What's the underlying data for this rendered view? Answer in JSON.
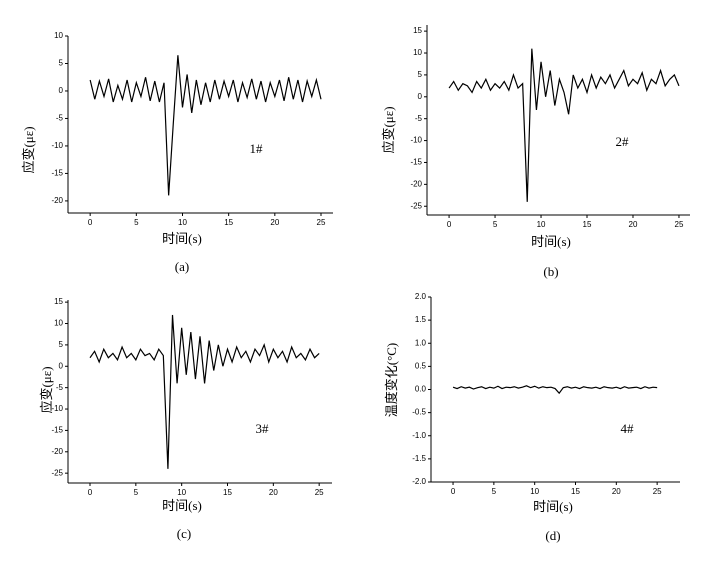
{
  "chart_data": [
    {
      "type": "line",
      "caption": "(a)",
      "annotation": "1#",
      "x_label": "时间(s)",
      "y_label": "应变(με)",
      "color": "#000000",
      "xlim": [
        -2.4,
        26.3
      ],
      "ylim": [
        -22.2,
        10
      ],
      "xticks": [
        0,
        5,
        10,
        15,
        20,
        25
      ],
      "yticks": [
        10,
        5,
        0,
        -5,
        -10,
        -15,
        -20
      ],
      "x": [
        0,
        0.5,
        1,
        1.5,
        2,
        2.5,
        3,
        3.5,
        4,
        4.5,
        5,
        5.5,
        6,
        6.5,
        7,
        7.5,
        8,
        8.5,
        9,
        9.5,
        10,
        10.5,
        11,
        11.5,
        12,
        12.5,
        13,
        13.5,
        14,
        14.5,
        15,
        15.5,
        16,
        16.5,
        17,
        17.5,
        18,
        18.5,
        19,
        19.5,
        20,
        20.5,
        21,
        21.5,
        22,
        22.5,
        23,
        23.5,
        24,
        24.5,
        25
      ],
      "values": [
        2,
        -1.5,
        1.8,
        -1,
        2.2,
        -2,
        1,
        -1.5,
        2,
        -2,
        1.5,
        -1,
        2.5,
        -1.8,
        1.8,
        -2,
        1.5,
        -19,
        -6,
        6.5,
        -3,
        3,
        -4,
        2,
        -2.5,
        1.5,
        -2,
        2,
        -1.5,
        1.8,
        -1,
        2,
        -2,
        1.5,
        -1.2,
        2.2,
        -1.5,
        1.8,
        -2,
        1.5,
        -1,
        2,
        -1.8,
        2.5,
        -1.5,
        2,
        -2,
        1.8,
        -1,
        2,
        -1.5
      ]
    },
    {
      "type": "line",
      "caption": "(b)",
      "annotation": "2#",
      "x_label": "时间(s)",
      "y_label": "应变(με)",
      "color": "#000000",
      "xlim": [
        -2.4,
        26.2
      ],
      "ylim": [
        -27,
        16.4
      ],
      "xticks": [
        0,
        5,
        10,
        15,
        20,
        25
      ],
      "yticks": [
        15,
        10,
        5,
        0,
        -5,
        -10,
        -15,
        -20,
        -25
      ],
      "x": [
        0,
        0.5,
        1,
        1.5,
        2,
        2.5,
        3,
        3.5,
        4,
        4.5,
        5,
        5.5,
        6,
        6.5,
        7,
        7.5,
        8,
        8.5,
        9,
        9.5,
        10,
        10.5,
        11,
        11.5,
        12,
        12.5,
        13,
        13.5,
        14,
        14.5,
        15,
        15.5,
        16,
        16.5,
        17,
        17.5,
        18,
        18.5,
        19,
        19.5,
        20,
        20.5,
        21,
        21.5,
        22,
        22.5,
        23,
        23.5,
        24,
        24.5,
        25
      ],
      "values": [
        2,
        3.5,
        1.5,
        3,
        2.5,
        1,
        3.5,
        2,
        4,
        1.5,
        3,
        2,
        3.5,
        1.5,
        5,
        2,
        3,
        -24,
        11,
        -3,
        8,
        0,
        6,
        -2,
        4,
        1,
        -4,
        5,
        2,
        4,
        1,
        5,
        2,
        4.5,
        3,
        5,
        2,
        4,
        6,
        2.5,
        4,
        3,
        5.5,
        1.5,
        4,
        3,
        6,
        2.5,
        4,
        5,
        2.5
      ]
    },
    {
      "type": "line",
      "caption": "(c)",
      "annotation": "3#",
      "x_label": "时间(s)",
      "y_label": "应变(με)",
      "color": "#000000",
      "xlim": [
        -2.4,
        26.4
      ],
      "ylim": [
        -27.3,
        15.5
      ],
      "xticks": [
        0,
        5,
        10,
        15,
        20,
        25
      ],
      "yticks": [
        15,
        10,
        5,
        0,
        -5,
        -10,
        -15,
        -20,
        -25
      ],
      "x": [
        0,
        0.5,
        1,
        1.5,
        2,
        2.5,
        3,
        3.5,
        4,
        4.5,
        5,
        5.5,
        6,
        6.5,
        7,
        7.5,
        8,
        8.5,
        9,
        9.5,
        10,
        10.5,
        11,
        11.5,
        12,
        12.5,
        13,
        13.5,
        14,
        14.5,
        15,
        15.5,
        16,
        16.5,
        17,
        17.5,
        18,
        18.5,
        19,
        19.5,
        20,
        20.5,
        21,
        21.5,
        22,
        22.5,
        23,
        23.5,
        24,
        24.5,
        25
      ],
      "values": [
        2,
        3.5,
        1,
        4,
        2,
        3,
        1.5,
        4.5,
        2,
        3,
        1.5,
        4,
        2.5,
        3,
        1.5,
        4,
        2.5,
        -24,
        12,
        -4,
        9,
        -2,
        8,
        -3,
        7,
        -4,
        6,
        -1,
        5,
        0,
        4,
        1,
        4.5,
        2,
        3.5,
        1,
        4,
        2.5,
        5,
        1,
        4,
        2,
        3.5,
        1,
        4.5,
        2,
        3,
        1.5,
        4,
        2,
        3
      ]
    },
    {
      "type": "line",
      "caption": "(d)",
      "annotation": "4#",
      "x_label": "时间(s)",
      "y_label": "温度变化(°C)",
      "color": "#000000",
      "xlim": [
        -2.7,
        27.8
      ],
      "ylim": [
        -2,
        2
      ],
      "xticks": [
        0,
        5,
        10,
        15,
        20,
        25
      ],
      "yticks": [
        {
          "value": 2,
          "label": "2.0"
        },
        {
          "value": 1.5,
          "label": "1.5"
        },
        {
          "value": 1,
          "label": "1.0"
        },
        {
          "value": 0.5,
          "label": "0.5"
        },
        {
          "value": 0,
          "label": "0.0"
        },
        {
          "value": -0.5,
          "label": "-0.5"
        },
        {
          "value": -1,
          "label": "-1.0"
        },
        {
          "value": -1.5,
          "label": "-1.5"
        },
        {
          "value": -2,
          "label": "-2.0"
        }
      ],
      "x": [
        0,
        0.5,
        1,
        1.5,
        2,
        2.5,
        3,
        3.5,
        4,
        4.5,
        5,
        5.5,
        6,
        6.5,
        7,
        7.5,
        8,
        8.5,
        9,
        9.5,
        10,
        10.5,
        11,
        11.5,
        12,
        12.5,
        13,
        13.5,
        14,
        14.5,
        15,
        15.5,
        16,
        16.5,
        17,
        17.5,
        18,
        18.5,
        19,
        19.5,
        20,
        20.5,
        21,
        21.5,
        22,
        22.5,
        23,
        23.5,
        24,
        24.5,
        25
      ],
      "values": [
        0.05,
        0.02,
        0.06,
        0.03,
        0.05,
        0.01,
        0.04,
        0.06,
        0.02,
        0.05,
        0.03,
        0.07,
        0.02,
        0.05,
        0.04,
        0.06,
        0.03,
        0.05,
        0.08,
        0.04,
        0.07,
        0.03,
        0.06,
        0.04,
        0.05,
        0.02,
        -0.08,
        0.04,
        0.06,
        0.03,
        0.05,
        0.02,
        0.06,
        0.04,
        0.03,
        0.05,
        0.02,
        0.06,
        0.04,
        0.03,
        0.05,
        0.02,
        0.06,
        0.03,
        0.04,
        0.05,
        0.02,
        0.06,
        0.03,
        0.05,
        0.04
      ]
    }
  ]
}
